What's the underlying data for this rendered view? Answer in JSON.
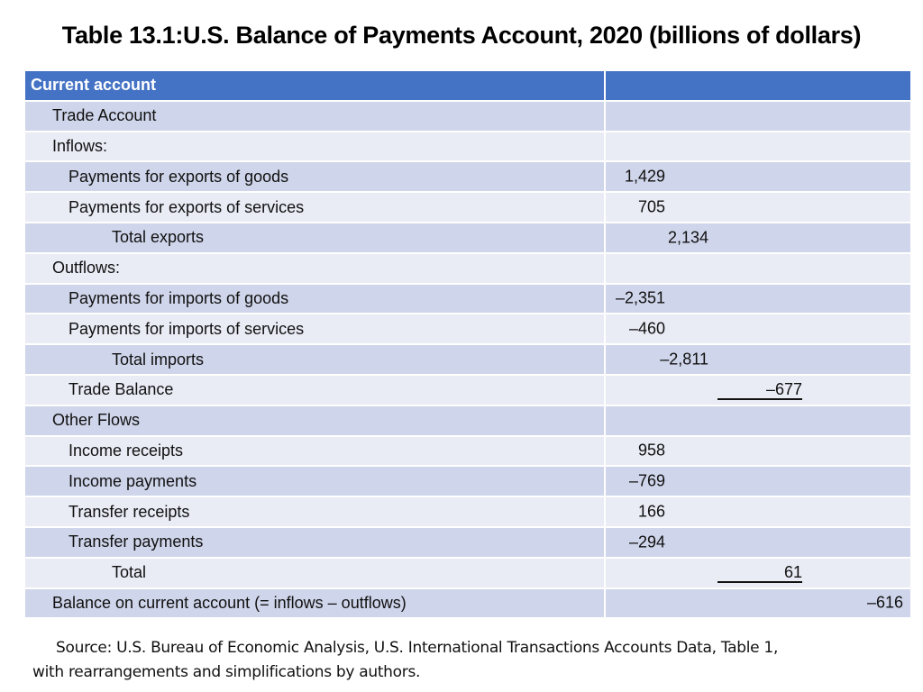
{
  "title": "Table 13.1:U.S. Balance of Payments Account, 2020 (billions of dollars)",
  "table": {
    "header": "Current account",
    "rows": [
      {
        "label": "Trade Account",
        "value": ""
      },
      {
        "label": "Inflows:",
        "value": ""
      },
      {
        "label": "Payments for exports of goods",
        "value": "1,429"
      },
      {
        "label": "Payments for exports of services",
        "value": "705"
      },
      {
        "label": "Total exports",
        "value": "2,134"
      },
      {
        "label": "Outflows:",
        "value": ""
      },
      {
        "label": "Payments for imports of goods",
        "value": "–2,351"
      },
      {
        "label": "Payments for imports of services",
        "value": "–460"
      },
      {
        "label": "Total imports",
        "value": "–2,811"
      },
      {
        "label": "Trade Balance",
        "value": "–677"
      },
      {
        "label": "Other Flows",
        "value": ""
      },
      {
        "label": "Income receipts",
        "value": "958"
      },
      {
        "label": "Income payments",
        "value": "–769"
      },
      {
        "label": "Transfer receipts",
        "value": "166"
      },
      {
        "label": "Transfer payments",
        "value": "–294"
      },
      {
        "label": "Total",
        "value": "61"
      },
      {
        "label": "Balance on current account (= inflows – outflows)",
        "value": "–616"
      }
    ]
  },
  "source": {
    "line1": "Source: U.S. Bureau of Economic Analysis, U.S. International Transactions Accounts Data, Table 1,",
    "line2": "with rearrangements and simplifications by authors."
  },
  "colors": {
    "header": "#4472c4",
    "row_dark": "#cfd5ea",
    "row_light": "#e9ebf5"
  }
}
